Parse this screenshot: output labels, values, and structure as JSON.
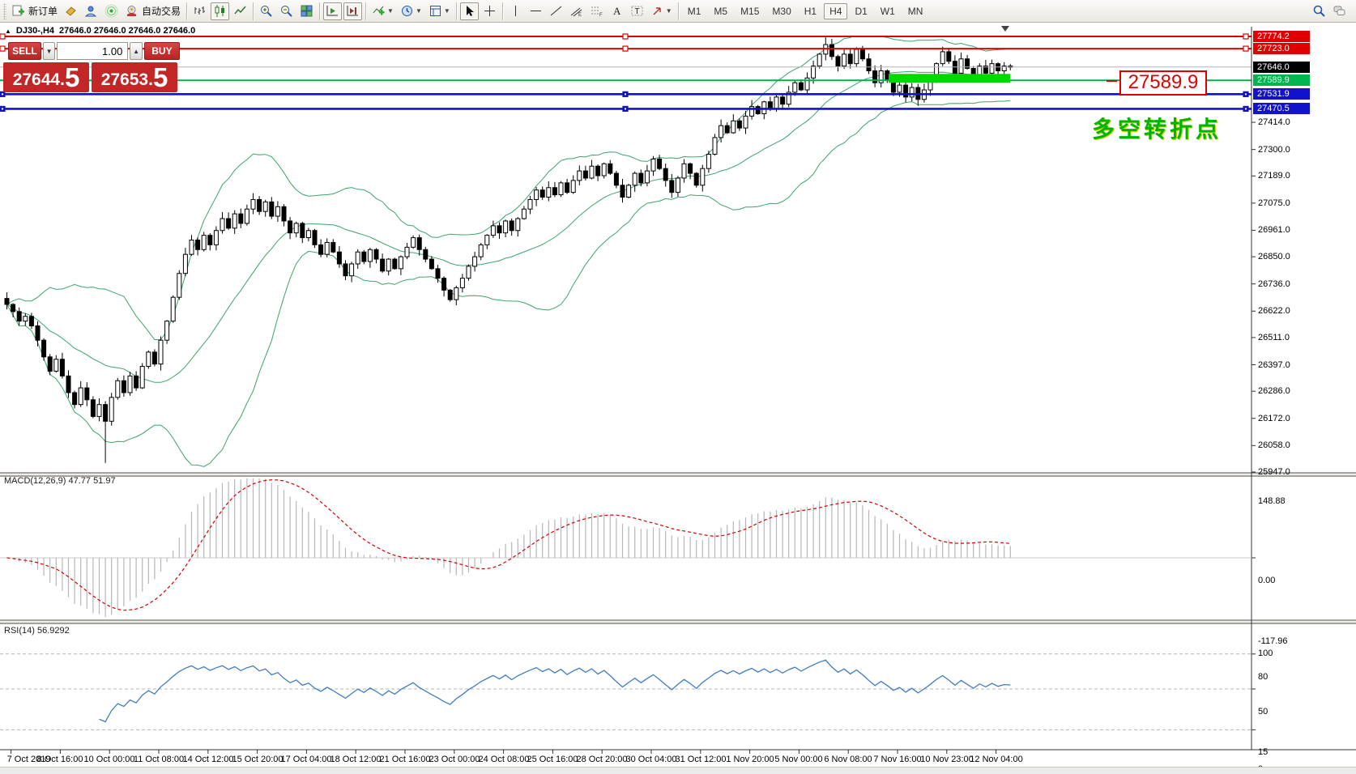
{
  "toolbar": {
    "left_items": [
      {
        "name": "new-order-button",
        "icon": "new-order",
        "label": "新订单"
      },
      {
        "name": "eraser-button",
        "icon": "eraser"
      },
      {
        "name": "profiles-button",
        "icon": "profiles"
      },
      {
        "name": "signal-button",
        "icon": "signal"
      },
      {
        "name": "autotrade-button",
        "icon": "autotrade",
        "label": "自动交易"
      },
      {
        "sep": true
      },
      {
        "name": "bar-chart-button",
        "icon": "bar-chart"
      },
      {
        "name": "candle-chart-button",
        "icon": "candle-chart",
        "active": true
      },
      {
        "name": "line-chart-button",
        "icon": "line-chart"
      },
      {
        "sep": true
      },
      {
        "name": "zoom-in-button",
        "icon": "zoom-in"
      },
      {
        "name": "zoom-out-button",
        "icon": "zoom-out"
      },
      {
        "name": "tile-windows-button",
        "icon": "tile"
      },
      {
        "sep": true
      },
      {
        "name": "auto-scroll-button",
        "icon": "auto-scroll",
        "active": true
      },
      {
        "name": "chart-shift-button",
        "icon": "chart-shift",
        "active": true
      },
      {
        "sep": true
      },
      {
        "name": "indicators-button",
        "icon": "indicators",
        "dropdown": true
      },
      {
        "name": "periods-button",
        "icon": "clock",
        "dropdown": true
      },
      {
        "name": "templates-button",
        "icon": "template",
        "dropdown": true
      },
      {
        "sep": true
      },
      {
        "name": "cursor-button",
        "icon": "cursor",
        "active": true
      },
      {
        "name": "crosshair-button",
        "icon": "crosshair"
      },
      {
        "sep": true
      },
      {
        "name": "vertical-line-button",
        "icon": "vline"
      },
      {
        "name": "horizontal-line-button",
        "icon": "hline"
      },
      {
        "name": "trendline-button",
        "icon": "trendline"
      },
      {
        "name": "channel-button",
        "icon": "channel"
      },
      {
        "name": "fibonacci-button",
        "icon": "fibo"
      },
      {
        "name": "text-button",
        "icon": "text"
      },
      {
        "name": "text-label-button",
        "icon": "textlabel"
      },
      {
        "name": "arrows-button",
        "icon": "arrows",
        "dropdown": true
      },
      {
        "sep": true
      }
    ],
    "timeframes": [
      {
        "label": "M1"
      },
      {
        "label": "M5"
      },
      {
        "label": "M15"
      },
      {
        "label": "M30"
      },
      {
        "label": "H1"
      },
      {
        "label": "H4",
        "active": true
      },
      {
        "label": "D1"
      },
      {
        "label": "W1"
      },
      {
        "label": "MN"
      }
    ],
    "right_items": [
      {
        "name": "search-button",
        "icon": "search"
      },
      {
        "name": "community-chat-button",
        "icon": "chat"
      }
    ]
  },
  "chart": {
    "title_symbol": "DJ30-,H4",
    "title_ohlc": "27646.0 27646.0 27646.0 27646.0",
    "trade_panel": {
      "sell_label": "SELL",
      "buy_label": "BUY",
      "volume": "1.00",
      "sell_price_main": "27644",
      "sell_price_frac": "5",
      "buy_price_main": "27653",
      "buy_price_frac": "5",
      "dot": "."
    },
    "annotation_price": "27589.9",
    "annotation_text": "多空转折点",
    "macd_label_name": "MACD(12,26,9)",
    "macd_label_values": "47.77 51.97",
    "rsi_label_name": "RSI(14)",
    "rsi_label_value": "56.9292"
  },
  "colors": {
    "red_line": "#e00000",
    "green_line": "#00b050",
    "blue_line": "#1212cc",
    "current_price_line": "#b4b4b4",
    "current_flag_bg": "#000000",
    "green_flag_bg": "#00b44e",
    "bollinger": "#3aa56b",
    "rsi_line": "#3f7cc4",
    "macd_hist": "#b6b6b6",
    "macd_signal": "#d40000",
    "highlight_bar": "#00d800",
    "panel_red": "#c32626"
  },
  "chart_data": {
    "type": "candlestick",
    "symbol": "DJ30-,H4",
    "timeframe": "H4",
    "price_levels": [
      {
        "price": 27774.2,
        "label": "27774.2",
        "style": "red"
      },
      {
        "price": 27723.0,
        "label": "27723.0",
        "style": "red"
      },
      {
        "price": 27646.0,
        "label": "27646.0",
        "style": "current"
      },
      {
        "price": 27589.9,
        "label": "27589.9",
        "style": "green"
      },
      {
        "price": 27531.9,
        "label": "27531.9",
        "style": "blue"
      },
      {
        "price": 27470.5,
        "label": "27470.5",
        "style": "blue"
      }
    ],
    "y_ticks_main": [
      "27414.0",
      "27300.0",
      "27189.0",
      "27075.0",
      "26961.0",
      "26850.0",
      "26736.0",
      "26622.0",
      "26511.0",
      "26397.0",
      "26286.0",
      "26172.0",
      "26058.0",
      "25947.0"
    ],
    "y_axis_top_price": 27774.2,
    "y_axis_bottom_price": 25947.0,
    "x_labels": [
      "7 Oct 2019",
      "8 Oct 16:00",
      "10 Oct 00:00",
      "11 Oct 08:00",
      "14 Oct 12:00",
      "15 Oct 20:00",
      "17 Oct 04:00",
      "18 Oct 12:00",
      "21 Oct 16:00",
      "23 Oct 00:00",
      "24 Oct 08:00",
      "25 Oct 16:00",
      "28 Oct 20:00",
      "30 Oct 04:00",
      "31 Oct 12:00",
      "1 Nov 20:00",
      "5 Nov 00:00",
      "6 Nov 08:00",
      "7 Nov 16:00",
      "10 Nov 23:00",
      "12 Nov 04:00"
    ],
    "closes": [
      26650,
      26620,
      26580,
      26600,
      26560,
      26500,
      26430,
      26370,
      26420,
      26350,
      26280,
      26230,
      26300,
      26250,
      26180,
      26230,
      26160,
      26260,
      26330,
      26280,
      26350,
      26300,
      26390,
      26450,
      26400,
      26500,
      26580,
      26680,
      26780,
      26860,
      26920,
      26880,
      26940,
      26900,
      26960,
      27010,
      26970,
      27030,
      26990,
      27050,
      27090,
      27040,
      27080,
      27020,
      27060,
      27000,
      26950,
      26990,
      26930,
      26960,
      26900,
      26860,
      26910,
      26870,
      26820,
      26770,
      26820,
      26870,
      26830,
      26880,
      26840,
      26790,
      26840,
      26800,
      26850,
      26890,
      26930,
      26880,
      26840,
      26800,
      26760,
      26710,
      26670,
      26720,
      26760,
      26810,
      26850,
      26900,
      26940,
      26980,
      26950,
      27000,
      26960,
      27010,
      27050,
      27090,
      27130,
      27100,
      27140,
      27110,
      27160,
      27120,
      27170,
      27210,
      27180,
      27230,
      27190,
      27240,
      27200,
      27150,
      27100,
      27150,
      27200,
      27160,
      27210,
      27260,
      27220,
      27170,
      27120,
      27180,
      27240,
      27200,
      27150,
      27220,
      27280,
      27350,
      27400,
      27370,
      27420,
      27390,
      27440,
      27480,
      27450,
      27500,
      27470,
      27520,
      27490,
      27540,
      27580,
      27550,
      27600,
      27650,
      27700,
      27740,
      27690,
      27650,
      27700,
      27660,
      27720,
      27680,
      27630,
      27580,
      27630,
      27590,
      27540,
      27570,
      27520,
      27560,
      27510,
      27550,
      27600,
      27660,
      27710,
      27670,
      27620,
      27680,
      27640,
      27600,
      27650,
      27620,
      27660,
      27630,
      27650,
      27646
    ],
    "indicators": {
      "bollinger": {
        "period": 20,
        "deviation": 2
      },
      "macd": {
        "fast": 12,
        "slow": 26,
        "signal_period": 9,
        "last_value": "47.77",
        "last_signal": "51.97",
        "scale": {
          "max": "148.88",
          "mid": "0.00",
          "min": "-117.96"
        }
      },
      "rsi": {
        "period": 14,
        "last_value": "56.9292",
        "levels": [
          "80",
          "50",
          "15"
        ],
        "scale_max": "100",
        "scale_min": "0"
      }
    },
    "highlight_zone": {
      "price": 27589.9,
      "note": "thick green bar over level"
    }
  }
}
